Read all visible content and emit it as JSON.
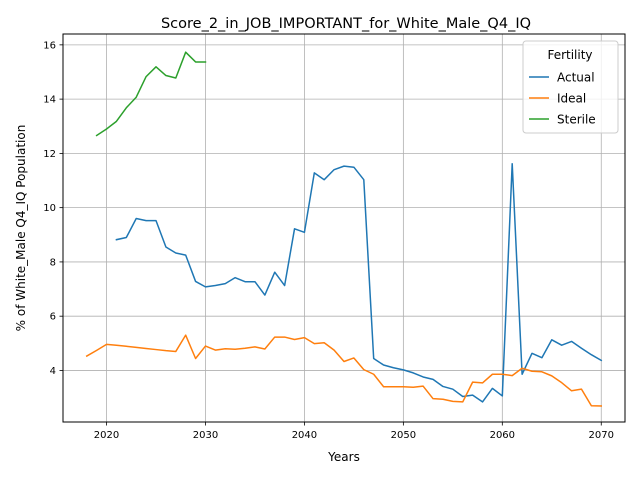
{
  "chart_data": {
    "type": "line",
    "title": "Score_2_in_JOB_IMPORTANT_for_White_Male_Q4_IQ",
    "xlabel": "Years",
    "ylabel": "% of White_Male Q4_IQ Population",
    "xlim": [
      2015.6,
      2072.4
    ],
    "ylim": [
      2.1,
      16.4
    ],
    "xticks": [
      2020,
      2030,
      2040,
      2050,
      2060,
      2070
    ],
    "yticks": [
      4,
      6,
      8,
      10,
      12,
      14,
      16
    ],
    "grid": true,
    "legend": {
      "title": "Fertility",
      "placement": "top-right"
    },
    "series": [
      {
        "name": "Actual",
        "color": "#1f77b4",
        "x": [
          2021,
          2022,
          2023,
          2024,
          2025,
          2026,
          2027,
          2028,
          2029,
          2030,
          2031,
          2032,
          2033,
          2034,
          2035,
          2036,
          2037,
          2038,
          2039,
          2040,
          2041,
          2042,
          2043,
          2044,
          2045,
          2046,
          2047,
          2048,
          2049,
          2050,
          2051,
          2052,
          2053,
          2054,
          2055,
          2056,
          2057,
          2058,
          2059,
          2060,
          2061,
          2062,
          2063,
          2064,
          2065,
          2066,
          2067,
          2068,
          2069,
          2070
        ],
        "y": [
          8.82,
          8.9,
          9.6,
          9.52,
          9.52,
          8.55,
          8.33,
          8.25,
          7.28,
          7.08,
          7.13,
          7.2,
          7.42,
          7.27,
          7.27,
          6.78,
          7.62,
          7.13,
          9.22,
          9.09,
          11.28,
          11.03,
          11.4,
          11.53,
          11.49,
          11.03,
          4.44,
          4.2,
          4.1,
          4.02,
          3.91,
          3.76,
          3.67,
          3.41,
          3.31,
          3.04,
          3.09,
          2.84,
          3.34,
          3.06,
          11.62,
          3.86,
          4.63,
          4.47,
          5.13,
          4.93,
          5.07,
          4.82,
          4.58,
          4.37
        ]
      },
      {
        "name": "Ideal",
        "color": "#ff7f0e",
        "x": [
          2018,
          2019,
          2020,
          2021,
          2022,
          2023,
          2024,
          2025,
          2026,
          2027,
          2028,
          2029,
          2030,
          2031,
          2032,
          2033,
          2034,
          2035,
          2036,
          2037,
          2038,
          2039,
          2040,
          2041,
          2042,
          2043,
          2044,
          2045,
          2046,
          2047,
          2048,
          2049,
          2050,
          2051,
          2052,
          2053,
          2054,
          2055,
          2056,
          2057,
          2058,
          2059,
          2060,
          2061,
          2062,
          2063,
          2064,
          2065,
          2066,
          2067,
          2068,
          2069,
          2070
        ],
        "y": [
          4.53,
          4.74,
          4.96,
          4.93,
          4.89,
          4.85,
          4.81,
          4.77,
          4.73,
          4.7,
          5.3,
          4.44,
          4.9,
          4.75,
          4.8,
          4.78,
          4.82,
          4.87,
          4.79,
          5.23,
          5.23,
          5.14,
          5.21,
          4.99,
          5.02,
          4.75,
          4.33,
          4.46,
          4.03,
          3.86,
          3.4,
          3.4,
          3.4,
          3.38,
          3.42,
          2.96,
          2.94,
          2.86,
          2.84,
          3.57,
          3.54,
          3.86,
          3.86,
          3.81,
          4.08,
          3.97,
          3.95,
          3.8,
          3.55,
          3.25,
          3.31,
          2.7,
          2.69
        ]
      },
      {
        "name": "Sterile",
        "color": "#2ca02c",
        "x": [
          2019,
          2020,
          2021,
          2022,
          2023,
          2024,
          2025,
          2026,
          2027,
          2028,
          2029,
          2030
        ],
        "y": [
          12.66,
          12.9,
          13.18,
          13.68,
          14.07,
          14.83,
          15.19,
          14.87,
          14.78,
          15.73,
          15.37,
          15.37
        ]
      }
    ]
  }
}
